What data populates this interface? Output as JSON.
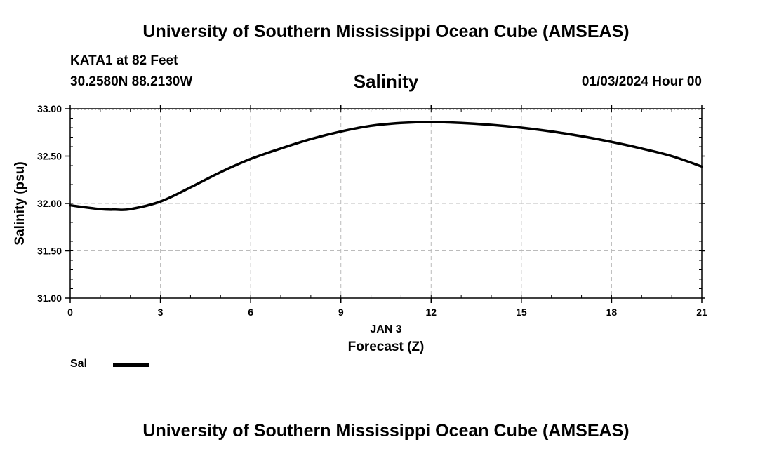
{
  "header": {
    "title": "University of Southern Mississippi Ocean Cube (AMSEAS)",
    "station": "KATA1 at 82 Feet",
    "coordinates": "30.2580N  88.2130W",
    "parameter": "Salinity",
    "datetime": "01/03/2024 Hour 00"
  },
  "footer": {
    "title": "University of Southern Mississippi Ocean Cube (AMSEAS)"
  },
  "legend": {
    "series_label": "Sal"
  },
  "colors": {
    "line": "#000000",
    "grid": "#bbbbbb"
  },
  "chart_data": {
    "type": "line",
    "title": "Salinity",
    "xlabel": "Forecast (Z)",
    "xlabel_date": "JAN 3",
    "ylabel": "Salinity (psu)",
    "xlim": [
      0,
      21
    ],
    "ylim": [
      31.0,
      33.0
    ],
    "x_ticks": [
      0,
      3,
      6,
      9,
      12,
      15,
      18,
      21
    ],
    "x_tick_labels": [
      "0",
      "3",
      "6",
      "9",
      "12",
      "15",
      "18",
      "21"
    ],
    "y_ticks": [
      31.0,
      31.5,
      32.0,
      32.5,
      33.0
    ],
    "y_tick_labels": [
      "31.00",
      "31.50",
      "32.00",
      "32.50",
      "33.00"
    ],
    "grid": true,
    "legend_position": "bottom-left",
    "series": [
      {
        "name": "Sal",
        "x": [
          0,
          1,
          1.5,
          2,
          3,
          4,
          5,
          6,
          7,
          8,
          9,
          10,
          11,
          12,
          13,
          14,
          15,
          16,
          17,
          18,
          19,
          20,
          21
        ],
        "values": [
          31.98,
          31.94,
          31.935,
          31.94,
          32.02,
          32.17,
          32.33,
          32.47,
          32.58,
          32.68,
          32.76,
          32.82,
          32.85,
          32.86,
          32.85,
          32.83,
          32.8,
          32.76,
          32.71,
          32.65,
          32.58,
          32.5,
          32.39
        ]
      }
    ]
  }
}
